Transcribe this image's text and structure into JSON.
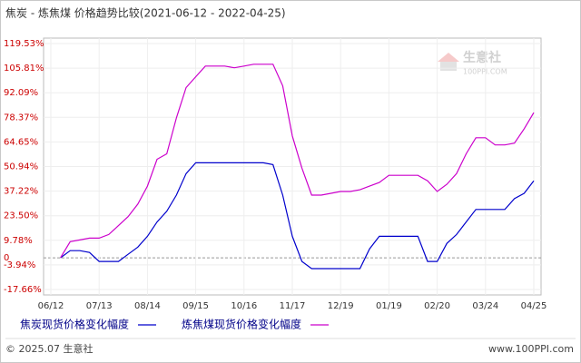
{
  "chart_data": {
    "type": "line",
    "title": "焦炭 - 炼焦煤 价格趋势比较(2021-06-12 - 2022-04-25)",
    "categories": [
      "06/12",
      null,
      null,
      null,
      null,
      "07/13",
      null,
      null,
      null,
      null,
      "08/14",
      null,
      null,
      null,
      null,
      "09/15",
      null,
      null,
      null,
      null,
      "10/16",
      null,
      null,
      null,
      null,
      "11/17",
      null,
      null,
      null,
      null,
      "12/19",
      null,
      null,
      null,
      null,
      "01/19",
      null,
      null,
      null,
      null,
      "02/20",
      null,
      null,
      null,
      null,
      "03/24",
      null,
      null,
      null,
      null,
      "04/25"
    ],
    "series": [
      {
        "name": "焦炭现货价格变化幅度",
        "color": "#0000cc",
        "values": [
          null,
          0,
          4,
          4,
          3,
          -2,
          -2,
          -2,
          2,
          6,
          12,
          20,
          26,
          35,
          47,
          53,
          53,
          53,
          53,
          53,
          53,
          53,
          53,
          52,
          35,
          12,
          -2,
          -6,
          -6,
          -6,
          -6,
          -6,
          -6,
          5,
          12,
          12,
          12,
          12,
          12,
          -2,
          -2,
          8,
          13,
          20,
          27,
          27,
          27,
          27,
          33,
          36,
          43
        ]
      },
      {
        "name": "炼焦煤现货价格变化幅度",
        "color": "#cc00cc",
        "values": [
          null,
          0,
          9,
          10,
          11,
          11,
          13,
          18,
          23,
          30,
          40,
          55,
          58,
          78,
          95,
          101,
          107,
          107,
          107,
          106,
          107,
          108,
          108,
          108,
          96,
          68,
          50,
          35,
          35,
          36,
          37,
          37,
          38,
          40,
          42,
          46,
          46,
          46,
          46,
          43,
          37,
          41,
          47,
          58,
          67,
          67,
          63,
          63,
          64,
          72,
          81
        ]
      }
    ],
    "ylim": [
      -17.66,
      119.53
    ],
    "yticks": [
      {
        "value": -17.66,
        "label": "-17.66%"
      },
      {
        "value": -3.94,
        "label": "-3.94%"
      },
      0,
      {
        "value": 9.78,
        "label": "9.78%"
      },
      {
        "value": 23.5,
        "label": "23.50%"
      },
      {
        "value": 37.22,
        "label": "37.22%"
      },
      {
        "value": 50.94,
        "label": "50.94%"
      },
      {
        "value": 64.65,
        "label": "64.65%"
      },
      {
        "value": 78.37,
        "label": "78.37%"
      },
      {
        "value": 92.09,
        "label": "92.09%"
      },
      {
        "value": 105.81,
        "label": "105.81%"
      },
      {
        "value": 119.53,
        "label": "119.53%"
      }
    ],
    "grid": true,
    "watermark": {
      "name": "生意社",
      "site": "100PPI.COM"
    },
    "footer": {
      "copyright": "© 2025.07 生意社",
      "site": "www.100PPI.com"
    }
  }
}
